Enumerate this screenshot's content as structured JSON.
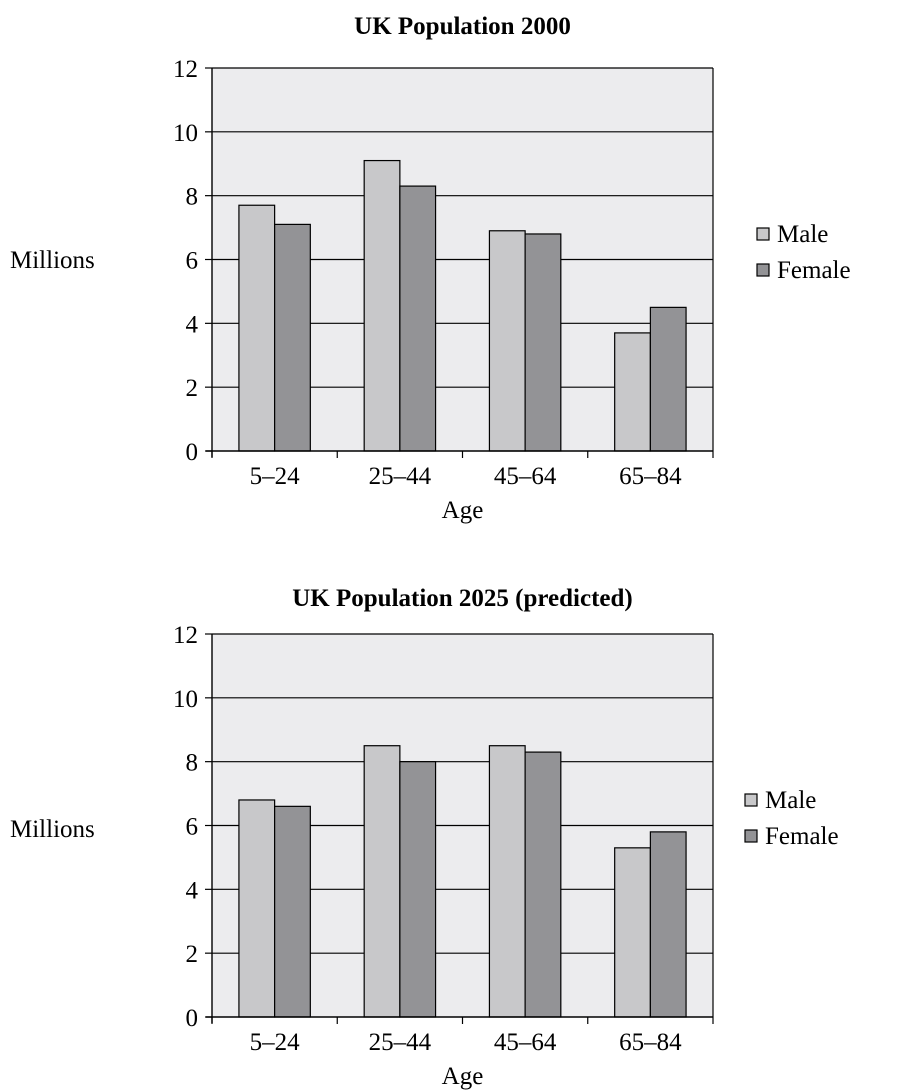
{
  "chart_data": [
    {
      "type": "bar",
      "title": "UK Population 2000",
      "xlabel": "Age",
      "ylabel": "Millions",
      "categories": [
        "5–24",
        "25–44",
        "45–64",
        "65–84"
      ],
      "ylim": [
        0,
        12
      ],
      "yticks": [
        0,
        2,
        4,
        6,
        8,
        10,
        12
      ],
      "grid": true,
      "legend_position": "right",
      "series": [
        {
          "name": "Male",
          "color": "#c8c8ca",
          "values": [
            7.7,
            9.1,
            6.9,
            3.7
          ]
        },
        {
          "name": "Female",
          "color": "#939396",
          "values": [
            7.1,
            8.3,
            6.8,
            4.5
          ]
        }
      ]
    },
    {
      "type": "bar",
      "title": "UK Population 2025 (predicted)",
      "xlabel": "Age",
      "ylabel": "Millions",
      "categories": [
        "5–24",
        "25–44",
        "45–64",
        "65–84"
      ],
      "ylim": [
        0,
        12
      ],
      "yticks": [
        0,
        2,
        4,
        6,
        8,
        10,
        12
      ],
      "grid": true,
      "legend_position": "right",
      "series": [
        {
          "name": "Male",
          "color": "#c8c8ca",
          "values": [
            6.8,
            8.5,
            8.5,
            5.3
          ]
        },
        {
          "name": "Female",
          "color": "#939396",
          "values": [
            6.6,
            8.0,
            8.3,
            5.8
          ]
        }
      ]
    }
  ],
  "colors": {
    "plot_background": "#ececee",
    "gridline": "#000000"
  }
}
